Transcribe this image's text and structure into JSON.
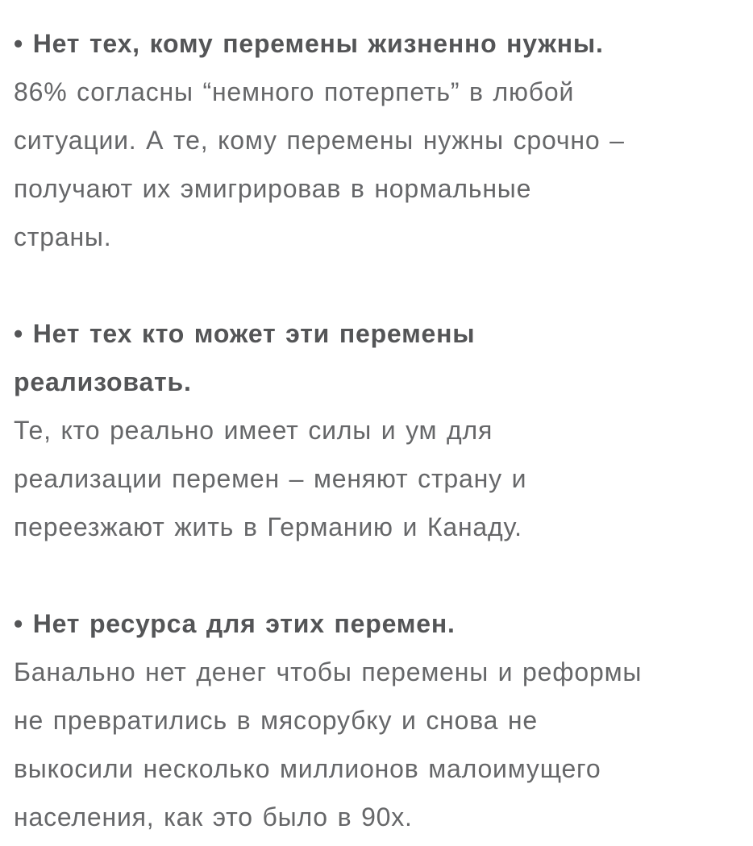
{
  "page": {
    "background": "#ffffff",
    "heading_color": "#545557",
    "body_color": "#666769",
    "bullet_glyph": "•"
  },
  "sections": [
    {
      "heading_text": "• Нет тех, кому перемены жизненно нужны.",
      "heading_lines": [
        "• Нет тех, кому перемены жизненно нужны."
      ],
      "body_text": "86% согласны “немного потерпеть” в любой ситуации. А те, кому перемены нужны срочно – получают их эмигрировав в нормальные страны.",
      "body_lines": [
        "86% согласны “немного потерпеть” в любой",
        "ситуации. А те, кому перемены нужны срочно –",
        "получают их эмигрировав в нормальные",
        "страны."
      ]
    },
    {
      "heading_text": "• Нет тех кто может эти перемены реализовать.",
      "heading_lines": [
        "• Нет тех кто может эти перемены",
        "реализовать."
      ],
      "body_text": "Те, кто реально имеет силы и ум для реализации перемен – меняют страну и переезжают жить в Германию и Канаду.",
      "body_lines": [
        "Те, кто реально имеет силы и ум для",
        "реализации перемен – меняют страну и",
        "переезжают жить в Германию и Канаду."
      ]
    },
    {
      "heading_text": "• Нет ресурса для этих перемен.",
      "heading_lines": [
        "• Нет ресурса для этих перемен."
      ],
      "body_text": "Банально нет денег чтобы перемены и реформы не превратились в мясорубку и снова не выкосили несколько миллионов малоимущего населения, как это было в 90х.",
      "body_lines": [
        "Банально нет денег чтобы перемены и реформы",
        "не превратились в мясорубку и снова не",
        "выкосили несколько миллионов малоимущего",
        "населения, как это было в 90х."
      ]
    }
  ]
}
